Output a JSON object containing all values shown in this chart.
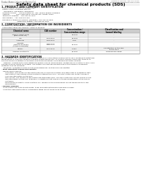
{
  "bg_color": "#ffffff",
  "header_top_left": "Product Name: Lithium Ion Battery Cell",
  "header_top_right": "Reference Number: SER-049-00815\nEstablishment / Revision: Dec.7.2018",
  "title": "Safety data sheet for chemical products (SDS)",
  "section1_header": "1. PRODUCT AND COMPANY IDENTIFICATION",
  "section1_lines": [
    "  Product name: Lithium Ion Battery Cell",
    "  Product code: Cylindrical-type cell",
    "    INR18650U, INR18650L, INR18650A",
    "  Company name:     Sanyo Electric Co., Ltd., Mobile Energy Company",
    "  Address:            2001, Kamikasai, Sumoto City, Hyogo, Japan",
    "  Telephone number:   +81-799-26-4111",
    "  Fax number:   +81-799-26-4123",
    "  Emergency telephone number (Weekday) +81-799-26-3562",
    "                              (Night and holiday) +81-799-26-4131"
  ],
  "section2_header": "2. COMPOSITION / INFORMATION ON INGREDIENTS",
  "section2_sub": "  Substance or preparation: Preparation",
  "section2_sub2": "  Information about the chemical nature of product:",
  "table_col_headers": [
    "Chemical name",
    "CAS number",
    "Concentration /\nConcentration range",
    "Classification and\nhazard labeling"
  ],
  "table_rows": [
    [
      "Lithium cobalt oxide\n(LiMn-Co-Ni-O2)",
      "-",
      "30-60%",
      "-"
    ],
    [
      "Iron",
      "7439-89-6",
      "15-25%",
      "-"
    ],
    [
      "Aluminum",
      "7429-90-5",
      "2-6%",
      "-"
    ],
    [
      "Graphite\n(Natural graphite)\n(Artificial graphite)",
      "7782-42-5\n7782-44-2",
      "15-25%",
      "-"
    ],
    [
      "Copper",
      "7440-50-8",
      "5-15%",
      "Sensitization of the skin\ngroup No.2"
    ],
    [
      "Organic electrolyte",
      "-",
      "10-20%",
      "Inflammable liquid"
    ]
  ],
  "section3_header": "3. HAZARDS IDENTIFICATION",
  "section3_para": [
    "For the battery cell, chemical materials are stored in a hermetically-sealed metal case, designed to withstand",
    "temperature or pressure-condition changes during normal use. As a result, during normal use, there is no",
    "physical danger of ignition or explosion and therefore danger of hazardous materials leakage.",
    "    However, if exposed to a fire added mechanical shocks, decomposed, vented electric electrolyte may issue.",
    "The gas release cannot be avoided. The battery cell case will be breached at the extreme, hazardous",
    "materials may be released.",
    "    Moreover, if heated strongly by the surrounding fire, soot gas may be emitted."
  ],
  "section3_bullet1": "  Most important hazard and effects:",
  "section3_human": "   Human health effects:",
  "section3_human_lines": [
    "       Inhalation: The release of the electrolyte has an anesthesia action and stimulates in respiratory tract.",
    "       Skin contact: The release of the electrolyte stimulates a skin. The electrolyte skin contact causes a",
    "       sore and stimulation on the skin.",
    "       Eye contact: The release of the electrolyte stimulates eyes. The electrolyte eye contact causes a sore",
    "       and stimulation on the eye. Especially, a substance that causes a strong inflammation of the eyes is",
    "       contained.",
    "       Environmental effects: Since a battery cell remains in the environment, do not throw out it into the",
    "       environment."
  ],
  "section3_specific": "  Specific hazards:",
  "section3_specific_lines": [
    "   If the electrolyte contacts with water, it will generate detrimental hydrogen fluoride.",
    "   Since the used electrolyte is inflammable liquid, do not bring close to fire."
  ],
  "line_color": "#aaaaaa",
  "header_color": "#888888",
  "text_color": "#111111",
  "table_header_bg": "#cccccc",
  "table_alt_bg": "#eeeeee"
}
